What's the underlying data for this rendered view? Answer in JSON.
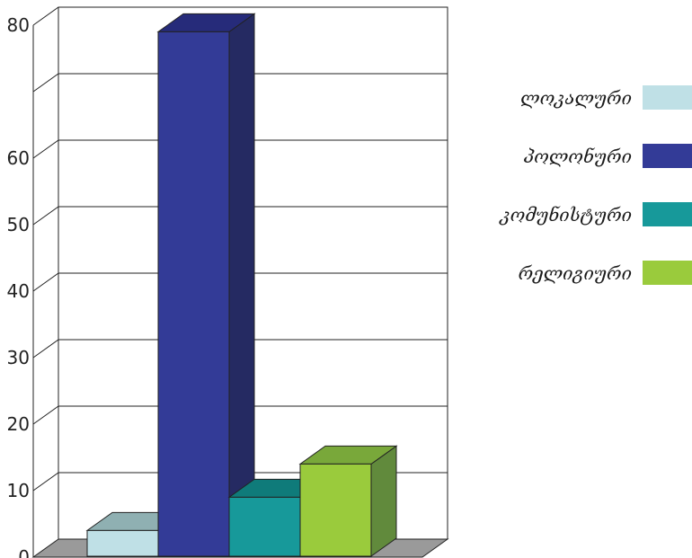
{
  "chart_data": {
    "type": "bar",
    "categories": [
      "ლოკალური",
      "პოლონური",
      "კომუნისტური",
      "რელიგიური"
    ],
    "values": [
      4,
      79,
      9,
      14
    ],
    "ylim": [
      0,
      80
    ],
    "yticks": [
      0,
      10,
      20,
      30,
      40,
      50,
      60,
      70,
      80
    ],
    "ytick_labels": [
      "0",
      "10",
      "20",
      "30",
      "40",
      "50",
      "60",
      "",
      "80"
    ],
    "grid": true,
    "legend": "right",
    "colors": [
      "#bfe0e6",
      "#333b97",
      "#17999a",
      "#9acb3c"
    ],
    "colors_top": [
      "#8fb0b2",
      "#262b7a",
      "#0f7b7a",
      "#79a83a"
    ],
    "colors_side": [
      "#95b5b8",
      "#252a62",
      "#0e6b6b",
      "#618a3c"
    ]
  },
  "legend": {
    "items": [
      {
        "label": "ლოკალური",
        "color": "#bfe0e6"
      },
      {
        "label": "პოლონური",
        "color": "#333b97"
      },
      {
        "label": "კომუნისტური",
        "color": "#17999a"
      },
      {
        "label": "რელიგიური",
        "color": "#9acb3c"
      }
    ]
  }
}
